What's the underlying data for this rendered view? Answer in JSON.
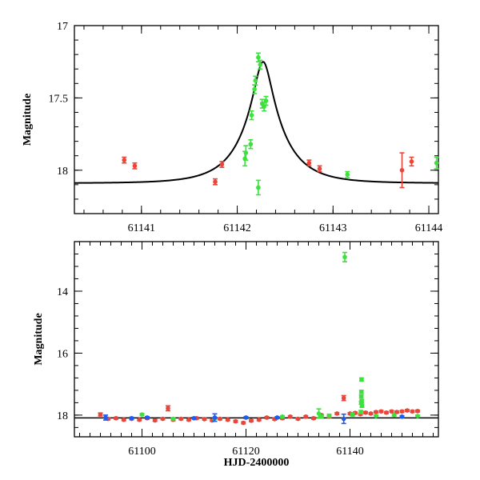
{
  "colors": {
    "red": "#e8463a",
    "green": "#3ee03e",
    "blue": "#1e5cf0",
    "line": "#000000"
  },
  "chart_data": [
    {
      "type": "scatter",
      "panel": "top",
      "title": "",
      "xlabel": "",
      "ylabel": "Magnitude",
      "xlim": [
        61140.3,
        61144.1
      ],
      "ylim": [
        18.3,
        17.0
      ],
      "inverted_y": true,
      "xticks": [
        61141,
        61142,
        61143,
        61144
      ],
      "xtick_labels": [
        "61141",
        "61142",
        "61143",
        "61144"
      ],
      "yticks": [
        17,
        17.5,
        18
      ],
      "ytick_labels": [
        "17",
        "17.5",
        "18"
      ],
      "model": {
        "type": "paczynski",
        "baseline": 18.09,
        "peak_mag": 17.25,
        "t0": 61142.27,
        "tE": 0.42,
        "u0": 0.2
      },
      "series": [
        {
          "name": "red",
          "color": "red",
          "points": [
            [
              61140.82,
              17.93,
              0.02
            ],
            [
              61140.93,
              17.97,
              0.02
            ],
            [
              61141.77,
              18.08,
              0.02
            ],
            [
              61141.84,
              17.96,
              0.02
            ],
            [
              61142.75,
              17.95,
              0.02
            ],
            [
              61142.86,
              17.99,
              0.02
            ],
            [
              61143.72,
              18.0,
              0.12
            ],
            [
              61143.82,
              17.94,
              0.03
            ]
          ]
        },
        {
          "name": "green",
          "color": "green",
          "points": [
            [
              61142.08,
              17.92,
              0.05
            ],
            [
              61142.09,
              17.88,
              0.05
            ],
            [
              61142.14,
              17.82,
              0.03
            ],
            [
              61142.15,
              17.62,
              0.03
            ],
            [
              61142.18,
              17.44,
              0.03
            ],
            [
              61142.19,
              17.38,
              0.03
            ],
            [
              61142.22,
              18.12,
              0.05
            ],
            [
              61142.22,
              17.22,
              0.03
            ],
            [
              61142.24,
              17.27,
              0.03
            ],
            [
              61142.26,
              17.54,
              0.03
            ],
            [
              61142.28,
              17.56,
              0.03
            ],
            [
              61142.3,
              17.52,
              0.03
            ],
            [
              61143.15,
              18.03,
              0.02
            ],
            [
              61144.08,
              17.95,
              0.04
            ]
          ]
        }
      ]
    },
    {
      "type": "scatter",
      "panel": "bottom",
      "title": "",
      "xlabel": "HJD-2400000",
      "ylabel": "Magnitude",
      "xlim": [
        61087,
        61157
      ],
      "ylim": [
        18.7,
        12.4
      ],
      "inverted_y": true,
      "xticks": [
        61100,
        61120,
        61140
      ],
      "xtick_labels": [
        "61100",
        "61120",
        "61140"
      ],
      "yticks": [
        14,
        16,
        18
      ],
      "ytick_labels": [
        "14",
        "16",
        "18"
      ],
      "model": {
        "type": "baseline",
        "value": 18.09
      },
      "series": [
        {
          "name": "red",
          "color": "red",
          "points": [
            [
              61092.0,
              17.98,
              0.05
            ],
            [
              61093.5,
              18.12,
              0.03
            ],
            [
              61095.0,
              18.1,
              0.03
            ],
            [
              61096.5,
              18.15,
              0.03
            ],
            [
              61098.0,
              18.12,
              0.03
            ],
            [
              61099.5,
              18.15,
              0.03
            ],
            [
              61101.0,
              18.1,
              0.03
            ],
            [
              61102.5,
              18.17,
              0.03
            ],
            [
              61104.0,
              18.12,
              0.03
            ],
            [
              61105.0,
              17.78,
              0.08
            ],
            [
              61106.0,
              18.15,
              0.03
            ],
            [
              61107.5,
              18.12,
              0.03
            ],
            [
              61109.0,
              18.15,
              0.03
            ],
            [
              61110.5,
              18.1,
              0.03
            ],
            [
              61112.0,
              18.13,
              0.03
            ],
            [
              61113.5,
              18.17,
              0.03
            ],
            [
              61115.0,
              18.12,
              0.03
            ],
            [
              61116.5,
              18.15,
              0.03
            ],
            [
              61118.0,
              18.2,
              0.03
            ],
            [
              61119.5,
              18.25,
              0.03
            ],
            [
              61121.0,
              18.18,
              0.03
            ],
            [
              61122.5,
              18.15,
              0.03
            ],
            [
              61124.0,
              18.08,
              0.03
            ],
            [
              61125.5,
              18.13,
              0.03
            ],
            [
              61127.0,
              18.1,
              0.03
            ],
            [
              61128.5,
              18.05,
              0.03
            ],
            [
              61130.0,
              18.12,
              0.03
            ],
            [
              61131.5,
              18.05,
              0.03
            ],
            [
              61133.0,
              18.1,
              0.03
            ],
            [
              61134.5,
              18.0,
              0.03
            ],
            [
              61136.0,
              18.05,
              0.03
            ],
            [
              61137.5,
              17.95,
              0.03
            ],
            [
              61138.8,
              17.45,
              0.08
            ],
            [
              61140.0,
              17.95,
              0.03
            ],
            [
              61141.0,
              17.93,
              0.03
            ],
            [
              61142.0,
              17.97,
              0.03
            ],
            [
              61143.0,
              17.92,
              0.03
            ],
            [
              61144.0,
              17.95,
              0.03
            ],
            [
              61145.0,
              17.9,
              0.03
            ],
            [
              61146.0,
              17.88,
              0.03
            ],
            [
              61147.0,
              17.92,
              0.03
            ],
            [
              61148.0,
              17.88,
              0.03
            ],
            [
              61149.0,
              17.9,
              0.03
            ],
            [
              61150.0,
              17.88,
              0.03
            ],
            [
              61151.0,
              17.85,
              0.03
            ],
            [
              61152.0,
              17.88,
              0.03
            ],
            [
              61153.0,
              17.87,
              0.03
            ]
          ]
        },
        {
          "name": "green",
          "color": "green",
          "points": [
            [
              61100.0,
              17.98,
              0.03
            ],
            [
              61106.0,
              18.12,
              0.03
            ],
            [
              61114.0,
              18.1,
              0.03
            ],
            [
              61127.0,
              18.05,
              0.03
            ],
            [
              61134.0,
              17.95,
              0.15
            ],
            [
              61134.5,
              18.05,
              0.05
            ],
            [
              61136.0,
              18.02,
              0.05
            ],
            [
              61139.0,
              12.9,
              0.15
            ],
            [
              61140.5,
              17.98,
              0.05
            ],
            [
              61142.1,
              17.9,
              0.05
            ],
            [
              61142.15,
              17.6,
              0.05
            ],
            [
              61142.18,
              17.4,
              0.05
            ],
            [
              61142.2,
              17.25,
              0.05
            ],
            [
              61142.22,
              16.85,
              0.05
            ],
            [
              61142.25,
              17.55,
              0.05
            ],
            [
              61142.3,
              17.7,
              0.05
            ],
            [
              61145.0,
              18.03,
              0.03
            ],
            [
              61148.5,
              18.0,
              0.03
            ],
            [
              61153.0,
              18.03,
              0.03
            ]
          ]
        },
        {
          "name": "blue",
          "color": "blue",
          "points": [
            [
              61093.0,
              18.08,
              0.08
            ],
            [
              61098.0,
              18.1,
              0.03
            ],
            [
              61101.0,
              18.08,
              0.03
            ],
            [
              61110.0,
              18.1,
              0.03
            ],
            [
              61114.0,
              18.08,
              0.12
            ],
            [
              61120.0,
              18.08,
              0.03
            ],
            [
              61126.0,
              18.08,
              0.03
            ],
            [
              61138.8,
              18.12,
              0.15
            ],
            [
              61150.0,
              18.05,
              0.03
            ]
          ]
        }
      ]
    }
  ]
}
